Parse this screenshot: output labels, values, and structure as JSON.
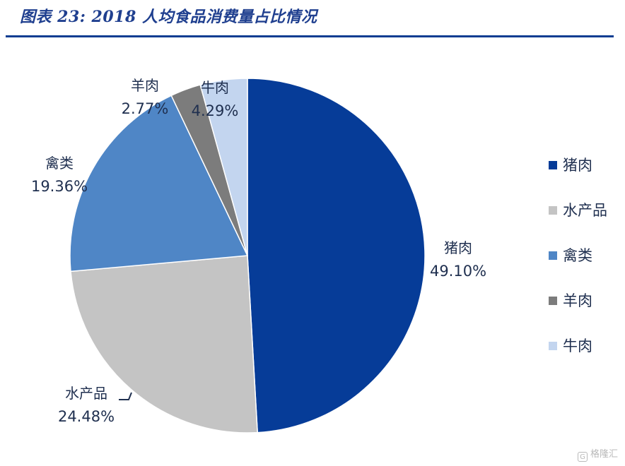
{
  "header": {
    "title": "图表 23:  2018 人均食品消费量占比情况"
  },
  "chart_data": {
    "type": "pie",
    "title": "图表 23:  2018 人均食品消费量占比情况",
    "slices": [
      {
        "name": "猪肉",
        "value": 49.1,
        "label": "49.10%",
        "color": "#063c98"
      },
      {
        "name": "水产品",
        "value": 24.48,
        "label": "24.48%",
        "color": "#c4c4c4"
      },
      {
        "name": "禽类",
        "value": 19.36,
        "label": "19.36%",
        "color": "#4f86c6"
      },
      {
        "name": "羊肉",
        "value": 2.77,
        "label": "2.77%",
        "color": "#7c7c7c"
      },
      {
        "name": "牛肉",
        "value": 4.29,
        "label": "4.29%",
        "color": "#c3d5ef"
      }
    ],
    "legend": {
      "position": "right",
      "items": [
        "猪肉",
        "水产品",
        "禽类",
        "羊肉",
        "牛肉"
      ]
    }
  },
  "watermark": {
    "logo": "G",
    "text": "格隆汇"
  }
}
